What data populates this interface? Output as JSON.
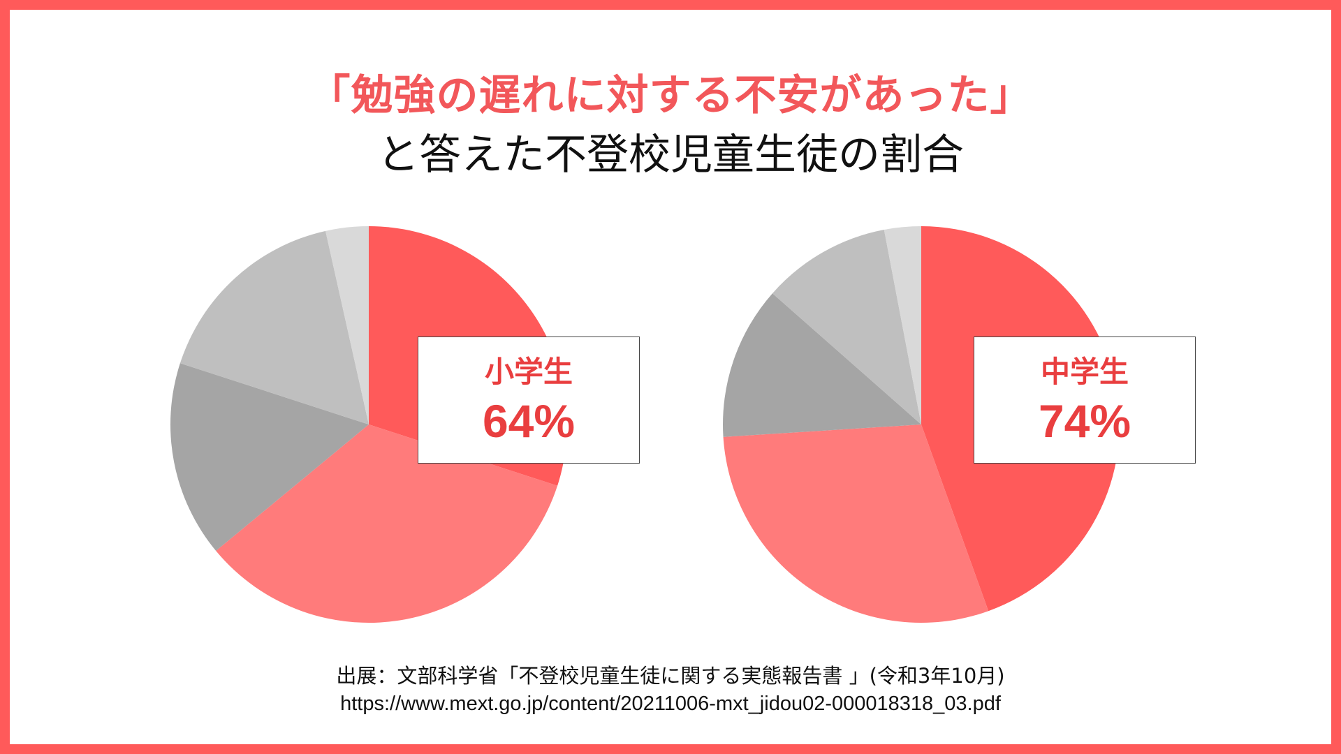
{
  "title": {
    "highlight": "「勉強の遅れに対する不安があった」",
    "main": "と答えた不登校児童生徒の割合"
  },
  "source": {
    "line1": "出展：文部科学省「不登校児童生徒に関する実態報告書 」(令和3年10月)",
    "line2": "https://www.mext.go.jp/content/20211006-mxt_jidou02-000018318_03.pdf"
  },
  "colors": {
    "frame": "#ff5a5a",
    "accent": "#e93e3f",
    "slice_colors": [
      "#ff5a5a",
      "#ff7b7b",
      "#a5a5a5",
      "#bfbfbf",
      "#d9d9d9"
    ]
  },
  "chart_data": [
    {
      "type": "pie",
      "label": "小学生",
      "value_label": "64%",
      "values": [
        30,
        34,
        16,
        16.5,
        3.5
      ],
      "colors": [
        "#ff5a5a",
        "#ff7b7b",
        "#a5a5a5",
        "#bfbfbf",
        "#d9d9d9"
      ]
    },
    {
      "type": "pie",
      "label": "中学生",
      "value_label": "74%",
      "values": [
        44.5,
        29.5,
        12.5,
        10.5,
        3
      ],
      "colors": [
        "#ff5a5a",
        "#ff7b7b",
        "#a5a5a5",
        "#bfbfbf",
        "#d9d9d9"
      ]
    }
  ]
}
